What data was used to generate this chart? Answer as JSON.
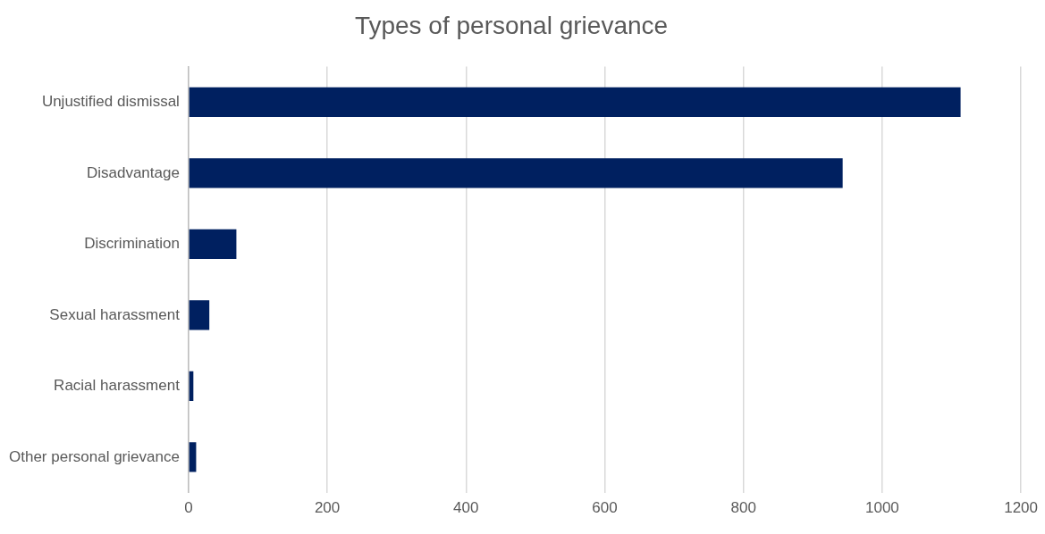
{
  "chart_data": {
    "type": "bar",
    "orientation": "horizontal",
    "title": "Types of personal grievance",
    "categories": [
      "Unjustified dismissal",
      "Disadvantage",
      "Discrimination",
      "Sexual harassment",
      "Racial harassment",
      "Other personal grievance"
    ],
    "values": [
      1113,
      943,
      69,
      30,
      7,
      11
    ],
    "color": "#002060",
    "xlim": [
      0,
      1200
    ],
    "xticks": [
      0,
      200,
      400,
      600,
      800,
      1000,
      1200
    ],
    "grid": "x",
    "legend": false
  }
}
